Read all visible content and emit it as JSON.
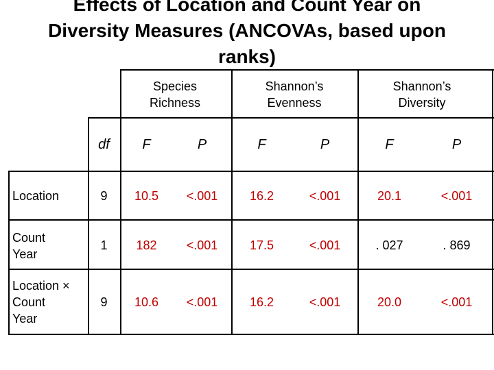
{
  "title": {
    "line1": "Effects of Location and Count Year on",
    "line2": "Diversity Measures (ANCOVAs, based upon",
    "line3": "ranks)"
  },
  "group_headers": {
    "species_richness": "Species Richness",
    "shannons_evenness": "Shannon’s Evenness",
    "shannons_diversity": "Shannon’s Diversity"
  },
  "sub_headers": {
    "df": "df",
    "f1": "F",
    "p1": "P",
    "f2": "F",
    "p2": "P",
    "f3": "F",
    "p3": "P"
  },
  "rows": [
    {
      "label_lines": [
        "Location"
      ],
      "df": "9",
      "sr_f": "10.5",
      "sr_p": "<.001",
      "se_f": "16.2",
      "se_p": "<.001",
      "sd_f": "20.1",
      "sd_p": "<.001"
    },
    {
      "label_lines": [
        "Count",
        "Year"
      ],
      "df": "1",
      "sr_f": "182",
      "sr_p": "<.001",
      "se_f": "17.5",
      "se_p": "<.001",
      "sd_f": ". 027",
      "sd_p": ". 869"
    },
    {
      "label_lines": [
        "Location ×",
        "Count",
        "Year"
      ],
      "df": "9",
      "sr_f": "10.6",
      "sr_p": "<.001",
      "se_f": "16.2",
      "se_p": "<.001",
      "sd_f": "20.0",
      "sd_p": "<.001"
    }
  ],
  "colors": {
    "text": "#000000",
    "significant_value": "#c00000",
    "rule": "#000000"
  }
}
